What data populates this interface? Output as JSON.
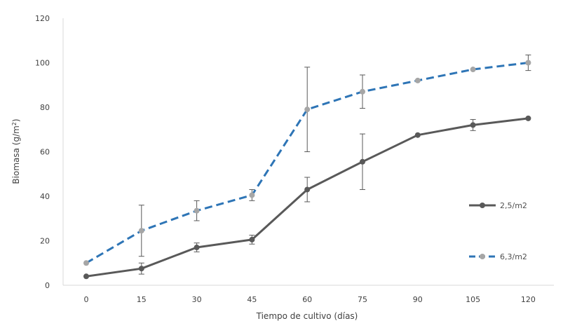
{
  "chart_data": {
    "type": "line",
    "xlabel": "Tiempo de cultivo (días)",
    "ylabel": "Biomasa (g/m",
    "ylabel_sup": "2",
    "ylabel_end": ")",
    "categories": [
      "0",
      "15",
      "30",
      "45",
      "60",
      "75",
      "90",
      "105",
      "120"
    ],
    "y_ticks": [
      "0",
      "20",
      "40",
      "60",
      "80",
      "100",
      "120"
    ],
    "ylim": [
      0,
      120
    ],
    "grid": false,
    "legend_position": "right",
    "series": [
      {
        "name": "2,5/m2",
        "color": "#595959",
        "marker_color": "#595959",
        "dash": "solid",
        "values": [
          4,
          7.5,
          17,
          20.5,
          43,
          55.5,
          67.5,
          72,
          75
        ],
        "error": [
          0,
          2.5,
          2,
          2,
          5.5,
          12.5,
          0,
          2.5,
          0
        ]
      },
      {
        "name": "6,3/m2",
        "color": "#2e75b6",
        "marker_color": "#a6a6a6",
        "dash": "dashed",
        "values": [
          10,
          24.5,
          33.5,
          40.5,
          79,
          87,
          92,
          97,
          100
        ],
        "error": [
          0,
          11.5,
          4.5,
          2.5,
          19,
          7.5,
          0,
          0,
          3.5
        ]
      }
    ]
  }
}
